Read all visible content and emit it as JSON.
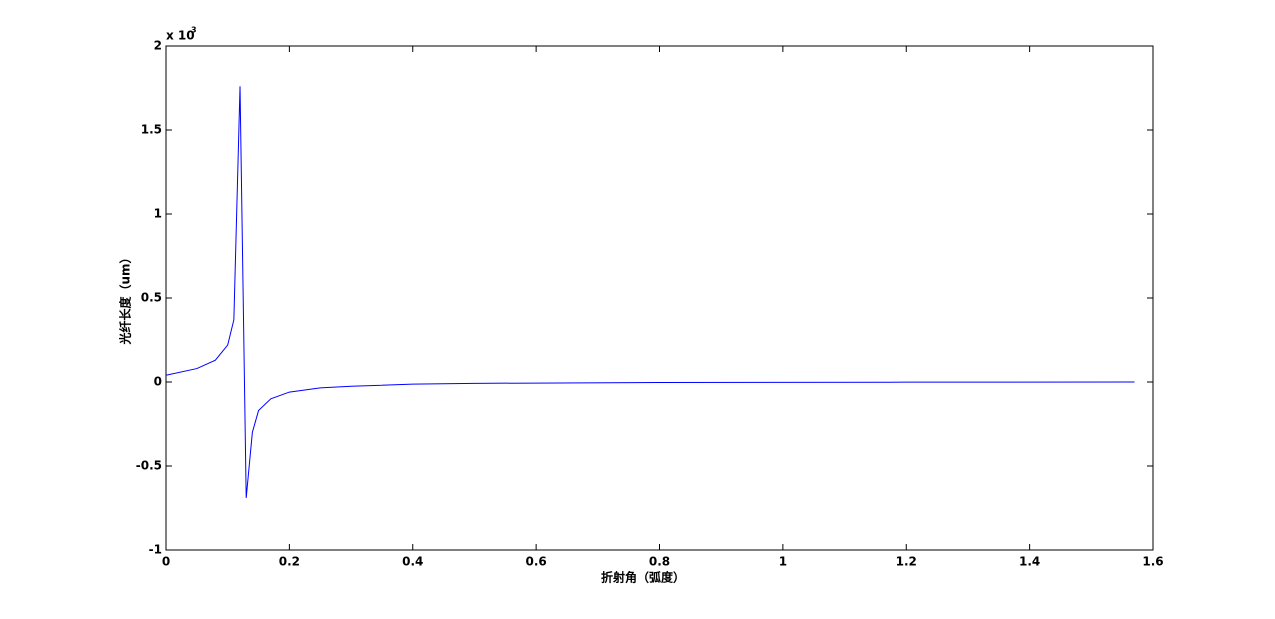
{
  "chart_data": {
    "type": "line",
    "xlabel": "折射角（弧度）",
    "ylabel": "光纤长度（um）",
    "y_multiplier": {
      "base": "x 10",
      "exponent": "3"
    },
    "x": [
      0,
      0.05,
      0.08,
      0.1,
      0.11,
      0.12,
      0.13,
      0.14,
      0.15,
      0.17,
      0.2,
      0.25,
      0.3,
      0.4,
      0.5,
      0.8,
      1.2,
      1.57
    ],
    "series": [
      {
        "color": "#0000ff",
        "values": [
          0.04,
          0.08,
          0.13,
          0.22,
          0.37,
          1.76,
          -0.69,
          -0.3,
          -0.17,
          -0.1,
          -0.06,
          -0.035,
          -0.025,
          -0.013,
          -0.008,
          -0.003,
          -0.001,
          0
        ]
      }
    ],
    "xlim": [
      0,
      1.6
    ],
    "ylim": [
      -1,
      2
    ],
    "xticks": [
      0,
      0.2,
      0.4,
      0.6,
      0.8,
      1,
      1.2,
      1.4,
      1.6
    ],
    "yticks": [
      -1,
      -0.5,
      0,
      0.5,
      1,
      1.5,
      2
    ],
    "grid": false
  }
}
